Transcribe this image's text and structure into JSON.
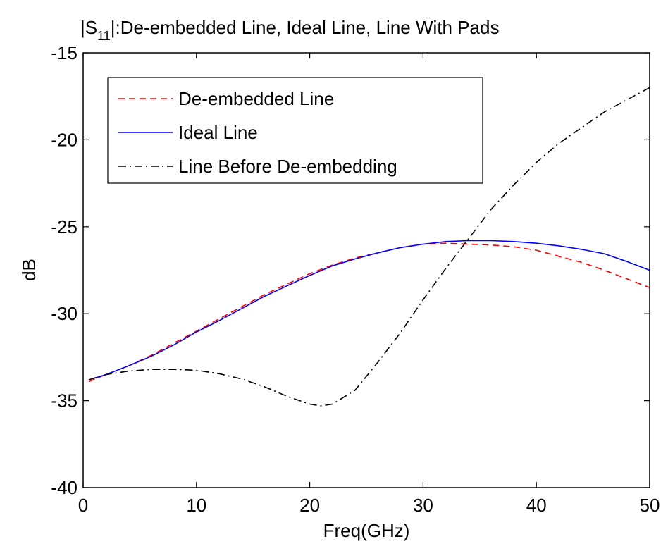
{
  "chart_data": {
    "type": "line",
    "title": {
      "prefix": "|S",
      "subscript": "11",
      "suffix": "|:De-embedded Line, Ideal Line, Line With Pads"
    },
    "xlabel": "Freq(GHz)",
    "ylabel": "dB",
    "xlim": [
      0,
      50
    ],
    "ylim": [
      -40,
      -15
    ],
    "xticks": [
      0,
      10,
      20,
      30,
      40,
      50
    ],
    "yticks": [
      -40,
      -35,
      -30,
      -25,
      -20,
      -15
    ],
    "grid": false,
    "legend_position": "top-left",
    "series": [
      {
        "name": "De-embedded Line",
        "color": "#ff0000",
        "style": "dashed",
        "x": [
          0.5,
          2,
          4,
          6,
          8,
          10,
          12,
          14,
          16,
          18,
          20,
          22,
          24,
          26,
          28,
          30,
          32,
          34,
          36,
          38,
          40,
          42,
          44,
          46,
          48,
          50
        ],
        "y": [
          -33.9,
          -33.5,
          -33.0,
          -32.4,
          -31.7,
          -31.0,
          -30.3,
          -29.6,
          -28.9,
          -28.3,
          -27.7,
          -27.2,
          -26.8,
          -26.5,
          -26.2,
          -26.0,
          -25.95,
          -26.0,
          -26.05,
          -26.15,
          -26.35,
          -26.7,
          -27.05,
          -27.5,
          -28.0,
          -28.5
        ]
      },
      {
        "name": "Ideal Line",
        "color": "#0000ff",
        "style": "solid",
        "x": [
          0.5,
          2,
          4,
          6,
          8,
          10,
          12,
          14,
          16,
          18,
          20,
          22,
          24,
          26,
          28,
          30,
          32,
          34,
          36,
          38,
          40,
          42,
          44,
          46,
          48,
          50
        ],
        "y": [
          -33.8,
          -33.5,
          -33.0,
          -32.45,
          -31.8,
          -31.05,
          -30.4,
          -29.7,
          -29.0,
          -28.4,
          -27.8,
          -27.25,
          -26.85,
          -26.5,
          -26.2,
          -26.0,
          -25.85,
          -25.8,
          -25.8,
          -25.85,
          -25.95,
          -26.1,
          -26.3,
          -26.55,
          -27.0,
          -27.5
        ]
      },
      {
        "name": "Line Before De-embedding",
        "color": "#000000",
        "style": "dashdot",
        "x": [
          0.5,
          2,
          4,
          6,
          8,
          10,
          12,
          14,
          16,
          18,
          20,
          21,
          22,
          24,
          26,
          28,
          30,
          32,
          34,
          36,
          38,
          40,
          42,
          44,
          46,
          48,
          50
        ],
        "y": [
          -33.8,
          -33.5,
          -33.3,
          -33.2,
          -33.2,
          -33.25,
          -33.45,
          -33.75,
          -34.2,
          -34.75,
          -35.2,
          -35.3,
          -35.2,
          -34.4,
          -32.8,
          -31.1,
          -29.2,
          -27.4,
          -25.7,
          -24.0,
          -22.6,
          -21.3,
          -20.2,
          -19.3,
          -18.4,
          -17.7,
          -17.0
        ]
      }
    ]
  }
}
